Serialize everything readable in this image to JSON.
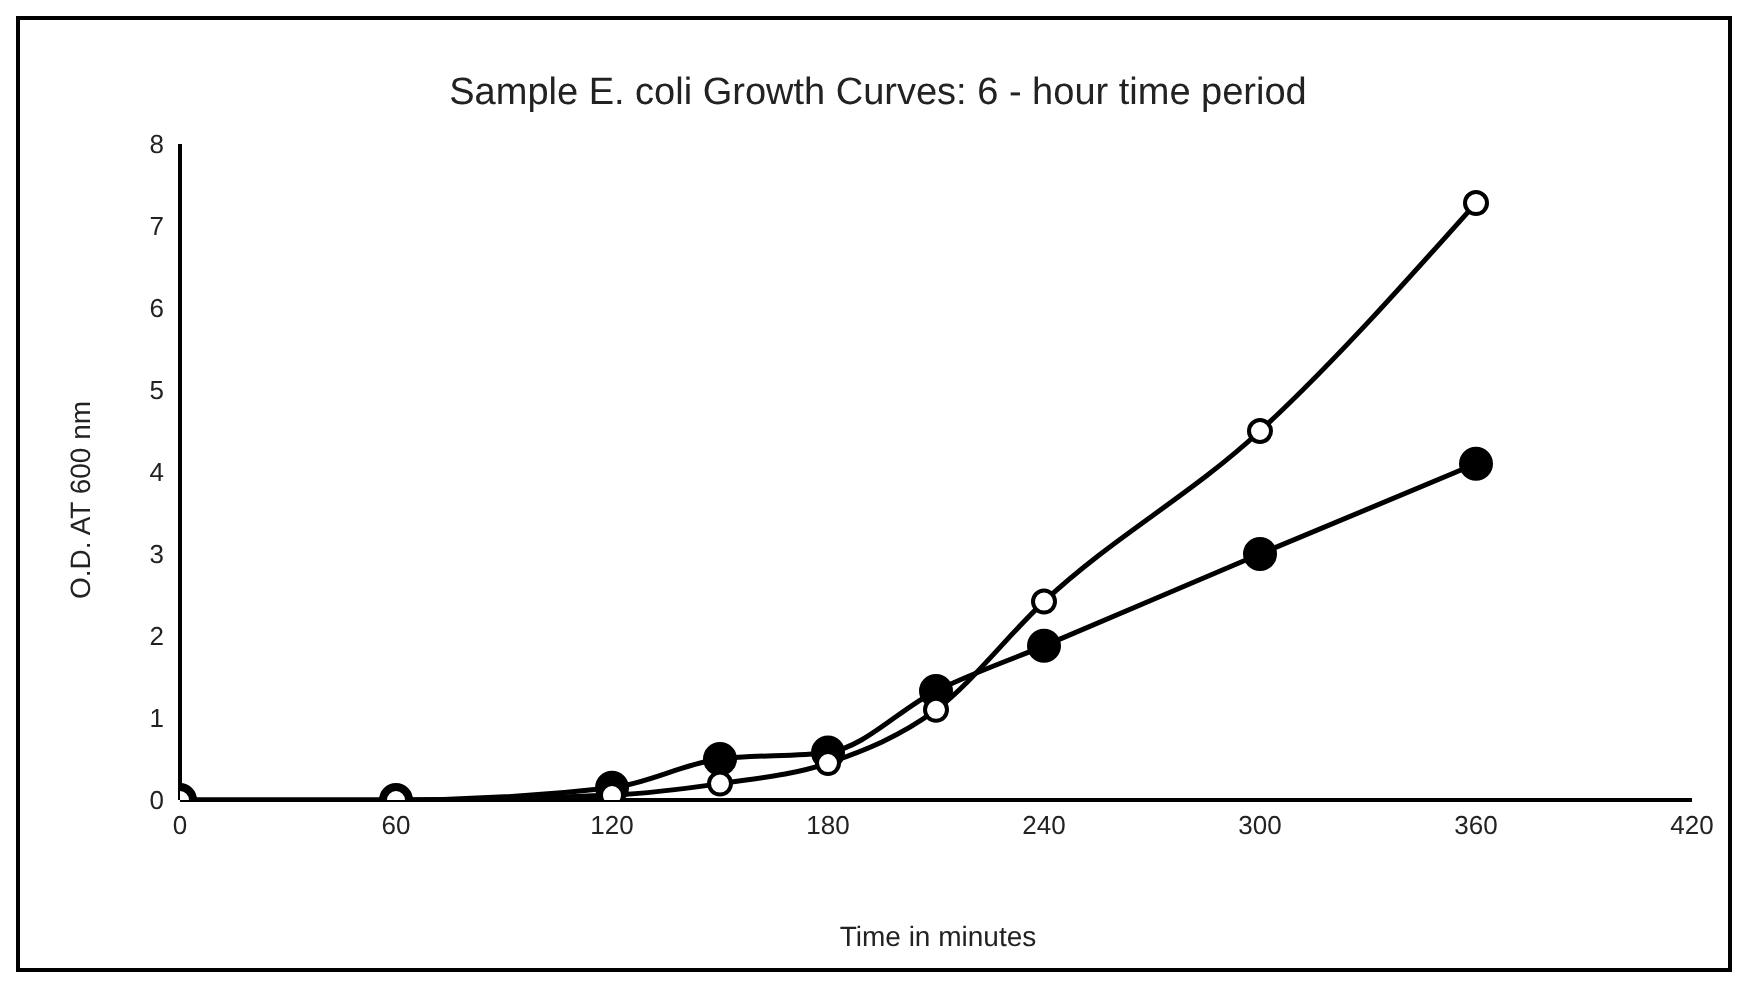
{
  "chart_data": {
    "type": "line",
    "title": "Sample E. coli Growth Curves: 6 - hour time period",
    "xlabel": "Time in minutes",
    "ylabel": "O.D. AT 600 nm",
    "x": [
      0,
      60,
      120,
      150,
      180,
      210,
      240,
      300,
      360
    ],
    "series": [
      {
        "color": "#000000",
        "values": [
          0,
          0,
          0.15,
          0.5,
          0.58,
          1.33,
          1.88,
          3.0,
          4.1
        ]
      },
      {
        "color": "#000000",
        "values": [
          0,
          0,
          0.06,
          0.2,
          0.45,
          1.1,
          2.42,
          4.5,
          7.28
        ]
      }
    ],
    "xlim": [
      0,
      420
    ],
    "xticks": [
      0,
      60,
      120,
      180,
      240,
      300,
      360,
      420
    ],
    "ylim": [
      0,
      8
    ],
    "yticks": [
      0,
      1,
      2,
      3,
      4,
      5,
      6,
      7,
      8
    ],
    "grid": false,
    "legend": false,
    "marker": "circle",
    "line_style": "solid"
  }
}
